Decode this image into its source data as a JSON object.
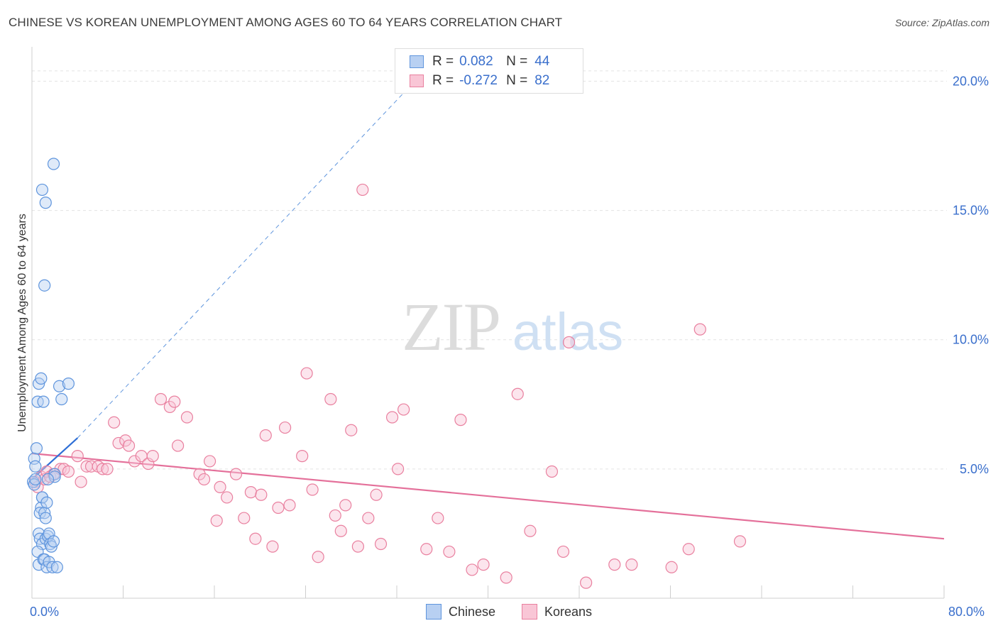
{
  "header": {
    "title": "CHINESE VS KOREAN UNEMPLOYMENT AMONG AGES 60 TO 64 YEARS CORRELATION CHART",
    "source": "Source: ZipAtlas.com"
  },
  "legend": {
    "chinese": {
      "r_label": "R =",
      "r_value": "0.082",
      "n_label": "N =",
      "n_value": "44"
    },
    "koreans": {
      "r_label": "R =",
      "r_value": "-0.272",
      "n_label": "N =",
      "n_value": "82"
    }
  },
  "watermark": {
    "zip": "ZIP",
    "atlas": "atlas"
  },
  "colors": {
    "chinese_fill": "#b8d0f2",
    "chinese_stroke": "#5f95dd",
    "chinese_line": "#2f6fd6",
    "korean_fill": "#f9c6d6",
    "korean_stroke": "#e9809f",
    "korean_line": "#e4709a",
    "tick_label": "#3a6fcc",
    "grid": "#e3e3e3"
  },
  "chart_data": {
    "type": "scatter",
    "title": "CHINESE VS KOREAN UNEMPLOYMENT AMONG AGES 60 TO 64 YEARS CORRELATION CHART",
    "xlabel": "",
    "ylabel": "Unemployment Among Ages 60 to 64 years",
    "xlim": [
      0,
      80
    ],
    "ylim": [
      0,
      21
    ],
    "x_tick_labels": [
      "0.0%",
      "80.0%"
    ],
    "y_ticks": [
      5,
      10,
      15,
      20
    ],
    "y_tick_labels": [
      "5.0%",
      "10.0%",
      "15.0%",
      "20.0%"
    ],
    "grid": true,
    "legend_position": "bottom",
    "series": [
      {
        "name": "Chinese",
        "points": [
          [
            0.1,
            4.5
          ],
          [
            0.2,
            4.4
          ],
          [
            0.3,
            4.6
          ],
          [
            0.2,
            5.4
          ],
          [
            0.3,
            5.1
          ],
          [
            0.4,
            5.8
          ],
          [
            0.5,
            7.6
          ],
          [
            0.6,
            8.3
          ],
          [
            0.8,
            8.5
          ],
          [
            1.0,
            7.6
          ],
          [
            0.9,
            3.9
          ],
          [
            0.8,
            3.5
          ],
          [
            0.7,
            3.3
          ],
          [
            0.9,
            3.9
          ],
          [
            1.1,
            3.3
          ],
          [
            1.2,
            3.1
          ],
          [
            1.3,
            3.7
          ],
          [
            0.6,
            2.5
          ],
          [
            0.7,
            2.3
          ],
          [
            0.9,
            2.1
          ],
          [
            1.2,
            2.3
          ],
          [
            1.4,
            2.4
          ],
          [
            1.5,
            2.5
          ],
          [
            1.6,
            2.1
          ],
          [
            1.7,
            2.0
          ],
          [
            1.9,
            2.2
          ],
          [
            0.5,
            1.8
          ],
          [
            0.6,
            1.3
          ],
          [
            1.0,
            1.5
          ],
          [
            1.1,
            1.5
          ],
          [
            1.3,
            1.2
          ],
          [
            1.5,
            1.4
          ],
          [
            1.8,
            1.2
          ],
          [
            2.2,
            1.2
          ],
          [
            0.9,
            15.8
          ],
          [
            1.2,
            15.3
          ],
          [
            1.9,
            16.8
          ],
          [
            1.1,
            12.1
          ],
          [
            2.4,
            8.2
          ],
          [
            3.2,
            8.3
          ],
          [
            2.6,
            7.7
          ],
          [
            2.0,
            4.8
          ],
          [
            2.0,
            4.7
          ],
          [
            1.4,
            4.6
          ]
        ],
        "trend": {
          "x": [
            0,
            4
          ],
          "y": [
            4.6,
            6.2
          ],
          "extended_to": [
            34,
            20.2
          ]
        }
      },
      {
        "name": "Koreans",
        "points": [
          [
            0.3,
            4.5
          ],
          [
            0.5,
            4.3
          ],
          [
            0.8,
            4.7
          ],
          [
            1.1,
            4.6
          ],
          [
            1.3,
            4.9
          ],
          [
            1.6,
            4.7
          ],
          [
            1.9,
            4.8
          ],
          [
            2.5,
            5.0
          ],
          [
            2.8,
            5.0
          ],
          [
            3.2,
            4.9
          ],
          [
            4.0,
            5.5
          ],
          [
            4.3,
            4.5
          ],
          [
            4.8,
            5.1
          ],
          [
            5.2,
            5.1
          ],
          [
            5.8,
            5.1
          ],
          [
            6.2,
            5.0
          ],
          [
            6.6,
            5.0
          ],
          [
            7.2,
            6.8
          ],
          [
            7.6,
            6.0
          ],
          [
            8.2,
            6.1
          ],
          [
            8.5,
            5.9
          ],
          [
            9.0,
            5.3
          ],
          [
            9.6,
            5.5
          ],
          [
            10.2,
            5.2
          ],
          [
            10.6,
            5.5
          ],
          [
            11.3,
            7.7
          ],
          [
            12.1,
            7.4
          ],
          [
            12.5,
            7.6
          ],
          [
            12.8,
            5.9
          ],
          [
            13.6,
            7.0
          ],
          [
            14.7,
            4.8
          ],
          [
            15.1,
            4.6
          ],
          [
            15.6,
            5.3
          ],
          [
            16.2,
            3.0
          ],
          [
            16.5,
            4.3
          ],
          [
            17.1,
            3.9
          ],
          [
            17.9,
            4.8
          ],
          [
            18.6,
            3.1
          ],
          [
            19.2,
            4.1
          ],
          [
            19.6,
            2.3
          ],
          [
            20.1,
            4.0
          ],
          [
            20.5,
            6.3
          ],
          [
            21.1,
            2.0
          ],
          [
            21.6,
            3.5
          ],
          [
            22.2,
            6.6
          ],
          [
            22.6,
            3.6
          ],
          [
            23.7,
            5.5
          ],
          [
            24.1,
            8.7
          ],
          [
            24.6,
            4.2
          ],
          [
            25.1,
            1.6
          ],
          [
            26.2,
            7.7
          ],
          [
            26.6,
            3.2
          ],
          [
            27.1,
            2.6
          ],
          [
            27.5,
            3.6
          ],
          [
            28.0,
            6.5
          ],
          [
            28.6,
            2.0
          ],
          [
            29.0,
            15.8
          ],
          [
            29.5,
            3.1
          ],
          [
            30.2,
            4.0
          ],
          [
            30.6,
            2.1
          ],
          [
            31.6,
            7.0
          ],
          [
            32.1,
            5.0
          ],
          [
            32.6,
            7.3
          ],
          [
            34.6,
            1.9
          ],
          [
            35.6,
            3.1
          ],
          [
            36.6,
            1.8
          ],
          [
            37.6,
            6.9
          ],
          [
            38.6,
            1.1
          ],
          [
            39.6,
            1.3
          ],
          [
            41.6,
            0.8
          ],
          [
            42.6,
            7.9
          ],
          [
            43.7,
            2.6
          ],
          [
            45.6,
            4.9
          ],
          [
            46.6,
            1.8
          ],
          [
            47.1,
            9.9
          ],
          [
            48.6,
            0.6
          ],
          [
            51.1,
            1.3
          ],
          [
            52.6,
            1.3
          ],
          [
            56.1,
            1.2
          ],
          [
            57.6,
            1.9
          ],
          [
            58.6,
            10.4
          ],
          [
            62.1,
            2.2
          ]
        ],
        "trend": {
          "x": [
            0,
            80
          ],
          "y": [
            5.6,
            2.3
          ]
        }
      }
    ]
  },
  "bottom_legend": {
    "chinese_label": "Chinese",
    "korean_label": "Koreans"
  }
}
